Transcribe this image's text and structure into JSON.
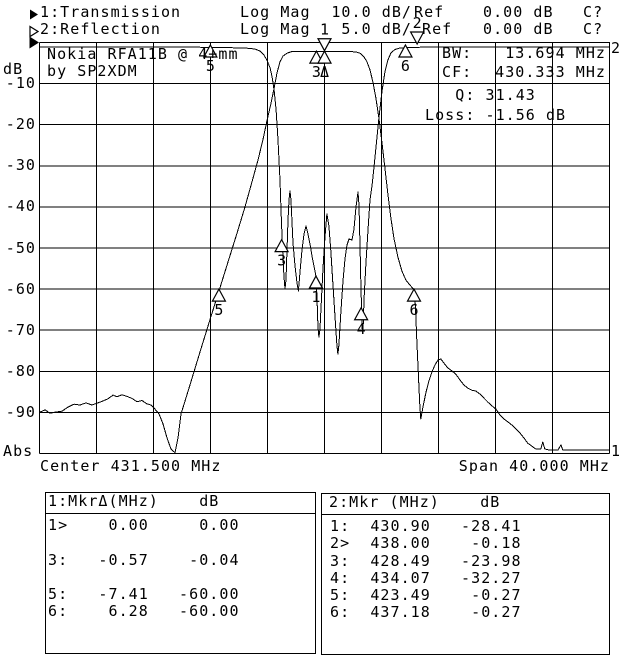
{
  "header": {
    "rows": [
      {
        "channel": "1:",
        "name": "Transmission",
        "mode": "Log Mag",
        "scale": "10.0 dB/",
        "ref_label": "Ref",
        "ref_value": "0.00 dB",
        "cal": "C?"
      },
      {
        "channel": "2:",
        "name": "Reflection",
        "mode": "Log Mag",
        "scale": "5.0 dB/",
        "ref_label": "Ref",
        "ref_value": "0.00 dB",
        "cal": "C?"
      }
    ]
  },
  "plot": {
    "y_unit": "dB",
    "y_bottom_label": "Abs",
    "y_ticks": [
      "-10",
      "-20",
      "-30",
      "-40",
      "-50",
      "-60",
      "-70",
      "-80",
      "-90"
    ],
    "x_center_label": "Center 431.500 MHz",
    "x_span_label": "Span 40.000 MHz",
    "annotation_line1": "Nokia RFA11B @ 4+mm",
    "annotation_line2": "by SP2XDM",
    "stats": {
      "bw_label": "BW:",
      "bw_value": "13.694 MHz",
      "cf_label": "CF:",
      "cf_value": "430.333 MHz",
      "q_label": "Q:",
      "q_value": "31.43",
      "loss_label": "Loss:",
      "loss_value": "-1.56 dB"
    },
    "edge_right_top": "2",
    "edge_right_bottom": "1"
  },
  "chart_data": {
    "type": "line",
    "x_range": [
      411.5,
      451.5
    ],
    "x_center_mhz": 431.5,
    "x_span_mhz": 40.0,
    "grid_divisions": 10,
    "series": [
      {
        "name": "Transmission",
        "scale_db_per_div": 10.0,
        "ref_db": 0.0,
        "y_range": [
          0,
          -100
        ],
        "points": [
          [
            411.54,
            -89.9
          ],
          [
            411.89,
            -89.4
          ],
          [
            412.24,
            -90.2
          ],
          [
            412.66,
            -89.9
          ],
          [
            413.08,
            -89.7
          ],
          [
            413.5,
            -88.7
          ],
          [
            413.92,
            -88.0
          ],
          [
            414.34,
            -88.2
          ],
          [
            414.76,
            -87.7
          ],
          [
            415.18,
            -88.2
          ],
          [
            415.6,
            -87.7
          ],
          [
            415.96,
            -87.2
          ],
          [
            416.31,
            -86.7
          ],
          [
            416.66,
            -85.8
          ],
          [
            416.94,
            -86.2
          ],
          [
            417.29,
            -85.7
          ],
          [
            417.64,
            -86.1
          ],
          [
            417.99,
            -86.6
          ],
          [
            418.34,
            -87.4
          ],
          [
            418.69,
            -87.1
          ],
          [
            419.04,
            -87.9
          ],
          [
            419.32,
            -88.2
          ],
          [
            419.6,
            -89.2
          ],
          [
            419.89,
            -90.4
          ],
          [
            420.17,
            -92.8
          ],
          [
            420.45,
            -96.2
          ],
          [
            420.73,
            -98.9
          ],
          [
            421.01,
            -99.8
          ],
          [
            421.22,
            -96.2
          ],
          [
            421.43,
            -90.4
          ],
          [
            422.06,
            -83.3
          ],
          [
            422.76,
            -75.3
          ],
          [
            423.46,
            -67.5
          ],
          [
            424.09,
            -60.5
          ],
          [
            424.73,
            -53.4
          ],
          [
            425.36,
            -46.4
          ],
          [
            425.92,
            -40.0
          ],
          [
            426.41,
            -33.9
          ],
          [
            426.83,
            -28.6
          ],
          [
            427.18,
            -23.7
          ],
          [
            427.46,
            -19.1
          ],
          [
            427.75,
            -14.7
          ],
          [
            427.96,
            -11.1
          ],
          [
            428.17,
            -7.4
          ],
          [
            428.38,
            -4.7
          ],
          [
            428.59,
            -3.3
          ],
          [
            428.87,
            -2.6
          ],
          [
            429.22,
            -2.2
          ],
          [
            430.49,
            -2.2
          ],
          [
            431.89,
            -2.2
          ],
          [
            433.29,
            -2.2
          ],
          [
            433.71,
            -2.3
          ],
          [
            433.99,
            -2.6
          ],
          [
            434.27,
            -3.5
          ],
          [
            434.48,
            -4.7
          ],
          [
            434.69,
            -6.7
          ],
          [
            434.9,
            -9.6
          ],
          [
            435.11,
            -13.5
          ],
          [
            435.32,
            -18.4
          ],
          [
            435.53,
            -24.2
          ],
          [
            435.74,
            -30.5
          ],
          [
            435.95,
            -36.9
          ],
          [
            436.16,
            -42.7
          ],
          [
            436.37,
            -47.6
          ],
          [
            436.65,
            -52.2
          ],
          [
            436.93,
            -55.6
          ],
          [
            437.21,
            -57.8
          ],
          [
            437.49,
            -59.0
          ],
          [
            437.77,
            -60.1
          ],
          [
            437.88,
            -63.9
          ],
          [
            437.98,
            -72.4
          ],
          [
            438.09,
            -80.9
          ],
          [
            438.19,
            -88.2
          ],
          [
            438.26,
            -91.6
          ],
          [
            438.4,
            -88.9
          ],
          [
            438.61,
            -85.3
          ],
          [
            438.82,
            -82.4
          ],
          [
            439.04,
            -80.2
          ],
          [
            439.25,
            -78.5
          ],
          [
            439.46,
            -77.3
          ],
          [
            439.67,
            -77.0
          ],
          [
            439.88,
            -78.0
          ],
          [
            440.16,
            -79.2
          ],
          [
            440.44,
            -79.9
          ],
          [
            440.72,
            -80.7
          ],
          [
            441.0,
            -82.1
          ],
          [
            441.28,
            -83.3
          ],
          [
            441.56,
            -84.1
          ],
          [
            441.84,
            -84.6
          ],
          [
            442.12,
            -84.8
          ],
          [
            442.4,
            -85.5
          ],
          [
            442.68,
            -86.5
          ],
          [
            442.96,
            -87.5
          ],
          [
            443.25,
            -88.4
          ],
          [
            443.53,
            -89.2
          ],
          [
            443.81,
            -90.6
          ],
          [
            444.09,
            -91.6
          ],
          [
            444.37,
            -92.3
          ],
          [
            444.65,
            -93.1
          ],
          [
            444.93,
            -94.0
          ],
          [
            445.21,
            -95.0
          ],
          [
            445.49,
            -96.2
          ],
          [
            445.77,
            -97.5
          ],
          [
            446.05,
            -98.2
          ],
          [
            446.33,
            -98.9
          ],
          [
            446.68,
            -98.9
          ],
          [
            446.82,
            -97.2
          ],
          [
            446.96,
            -98.9
          ],
          [
            447.32,
            -99.2
          ],
          [
            447.88,
            -99.2
          ],
          [
            448.09,
            -97.9
          ],
          [
            448.23,
            -99.2
          ],
          [
            449.07,
            -99.2
          ],
          [
            450.12,
            -99.2
          ],
          [
            451.46,
            -99.2
          ]
        ]
      },
      {
        "name": "Reflection",
        "scale_db_per_div": 5.0,
        "ref_db": 0.0,
        "y_range": [
          0,
          -50
        ],
        "points": [
          [
            411.54,
            -0.55
          ],
          [
            414.34,
            -0.55
          ],
          [
            417.85,
            -0.55
          ],
          [
            421.36,
            -0.55
          ],
          [
            424.17,
            -0.61
          ],
          [
            425.92,
            -0.67
          ],
          [
            426.62,
            -0.79
          ],
          [
            426.97,
            -1.03
          ],
          [
            427.25,
            -1.52
          ],
          [
            427.46,
            -2.13
          ],
          [
            427.68,
            -3.1
          ],
          [
            427.82,
            -4.2
          ],
          [
            427.96,
            -5.78
          ],
          [
            428.1,
            -8.21
          ],
          [
            428.24,
            -11.86
          ],
          [
            428.38,
            -16.73
          ],
          [
            428.45,
            -20.38
          ],
          [
            428.52,
            -23.42
          ],
          [
            428.59,
            -26.22
          ],
          [
            428.66,
            -28.53
          ],
          [
            428.73,
            -29.99
          ],
          [
            428.8,
            -28.89
          ],
          [
            428.87,
            -25.24
          ],
          [
            428.94,
            -21.59
          ],
          [
            429.01,
            -19.16
          ],
          [
            429.08,
            -18.07
          ],
          [
            429.15,
            -19.16
          ],
          [
            429.22,
            -21.84
          ],
          [
            429.29,
            -24.39
          ],
          [
            429.43,
            -27.19
          ],
          [
            429.57,
            -29.26
          ],
          [
            429.67,
            -30.23
          ],
          [
            429.78,
            -27.92
          ],
          [
            429.92,
            -25.24
          ],
          [
            430.06,
            -23.3
          ],
          [
            430.2,
            -22.32
          ],
          [
            430.34,
            -23.3
          ],
          [
            430.48,
            -24.51
          ],
          [
            430.62,
            -25.97
          ],
          [
            430.76,
            -27.19
          ],
          [
            430.9,
            -28.41
          ],
          [
            430.97,
            -30.72
          ],
          [
            431.04,
            -34.37
          ],
          [
            431.11,
            -35.83
          ],
          [
            431.18,
            -34.98
          ],
          [
            431.25,
            -32.54
          ],
          [
            431.39,
            -27.68
          ],
          [
            431.53,
            -23.78
          ],
          [
            431.67,
            -20.86
          ],
          [
            431.81,
            -22.32
          ],
          [
            431.95,
            -25.49
          ],
          [
            432.09,
            -29.38
          ],
          [
            432.23,
            -33.15
          ],
          [
            432.37,
            -36.8
          ],
          [
            432.44,
            -37.9
          ],
          [
            432.51,
            -36.8
          ],
          [
            432.66,
            -32.54
          ],
          [
            432.8,
            -29.01
          ],
          [
            432.94,
            -26.34
          ],
          [
            433.08,
            -24.64
          ],
          [
            433.22,
            -23.91
          ],
          [
            433.43,
            -24.03
          ],
          [
            433.57,
            -22.69
          ],
          [
            433.71,
            -20.01
          ],
          [
            433.85,
            -18.19
          ],
          [
            433.92,
            -19.77
          ],
          [
            433.99,
            -24.64
          ],
          [
            434.06,
            -30.11
          ],
          [
            434.1,
            -32.3
          ],
          [
            434.15,
            -34.98
          ],
          [
            434.2,
            -35.22
          ],
          [
            434.27,
            -31.33
          ],
          [
            434.41,
            -26.7
          ],
          [
            434.55,
            -22.81
          ],
          [
            434.69,
            -19.16
          ],
          [
            434.83,
            -17.46
          ],
          [
            434.97,
            -15.27
          ],
          [
            435.11,
            -12.83
          ],
          [
            435.32,
            -9.18
          ],
          [
            435.53,
            -6.02
          ],
          [
            435.74,
            -3.59
          ],
          [
            435.95,
            -2.13
          ],
          [
            436.16,
            -1.28
          ],
          [
            436.44,
            -0.85
          ],
          [
            436.79,
            -0.67
          ],
          [
            437.49,
            -0.61
          ],
          [
            438.89,
            -0.55
          ],
          [
            441.7,
            -0.55
          ],
          [
            445.21,
            -0.55
          ],
          [
            448.72,
            -0.55
          ],
          [
            451.46,
            -0.55
          ]
        ]
      }
    ],
    "markers": [
      {
        "label": "1",
        "trace": 1,
        "f": 431.5,
        "db": -2.0,
        "dir": "down"
      },
      {
        "label": "2",
        "trace": 2,
        "f": 438.0,
        "db": -0.18,
        "dir": "down"
      },
      {
        "label": "3",
        "trace": 1,
        "f": 430.93,
        "db": -2.1,
        "dir": "up"
      },
      {
        "label": "Δ",
        "trace": 1,
        "f": 431.5,
        "db": -2.1,
        "dir": "up"
      },
      {
        "label": "5",
        "trace": 2,
        "f": 423.49,
        "db": -0.3,
        "dir": "up"
      },
      {
        "label": "6",
        "trace": 2,
        "f": 437.18,
        "db": -0.3,
        "dir": "up"
      },
      {
        "label": "3",
        "trace": 2,
        "f": 428.49,
        "db": -23.98,
        "dir": "up"
      },
      {
        "label": "1",
        "trace": 2,
        "f": 430.9,
        "db": -28.41,
        "dir": "up"
      },
      {
        "label": "4",
        "trace": 2,
        "f": 434.07,
        "db": -32.27,
        "dir": "up"
      },
      {
        "label": "5",
        "trace": 1,
        "f": 424.09,
        "db": -60.0,
        "dir": "up"
      },
      {
        "label": "6",
        "trace": 1,
        "f": 437.78,
        "db": -60.0,
        "dir": "up"
      }
    ]
  },
  "tables": [
    {
      "header": "1:MkrΔ(MHz)    dB",
      "rows": [
        [
          "1>",
          "0.00",
          "0.00"
        ],
        [
          "",
          "",
          ""
        ],
        [
          "3:",
          "-0.57",
          "-0.04"
        ],
        [
          "",
          "",
          ""
        ],
        [
          "5:",
          "-7.41",
          "-60.00"
        ],
        [
          "6:",
          "6.28",
          "-60.00"
        ]
      ]
    },
    {
      "header": "2:Mkr (MHz)    dB",
      "rows": [
        [
          "1:",
          "430.90",
          "-28.41"
        ],
        [
          "2>",
          "438.00",
          "-0.18"
        ],
        [
          "3:",
          "428.49",
          "-23.98"
        ],
        [
          "4:",
          "434.07",
          "-32.27"
        ],
        [
          "5:",
          "423.49",
          "-0.27"
        ],
        [
          "6:",
          "437.18",
          "-0.27"
        ]
      ]
    }
  ]
}
